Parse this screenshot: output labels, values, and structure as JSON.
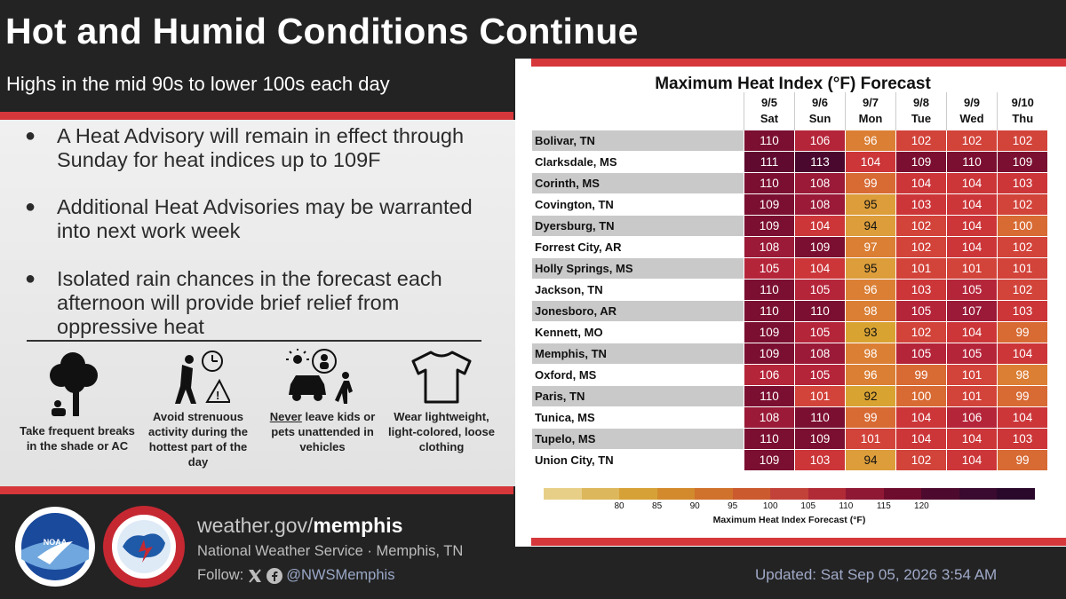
{
  "header": {
    "title": "Hot and Humid Conditions Continue",
    "subtitle": "Highs in the mid 90s to lower 100s each day"
  },
  "bullets": [
    "A Heat Advisory will remain in effect through Sunday for heat indices up to 109F",
    "Additional Heat Advisories may be warranted into next work week",
    "Isolated rain chances in the forecast each afternoon will provide brief relief from oppressive heat"
  ],
  "tips": {
    "shade": "Take frequent breaks in the shade or AC",
    "activity": "Avoid strenuous activity during the hottest part of the day",
    "kids_never": "Never",
    "kids_rest": "leave kids or pets unattended in vehicles",
    "clothing": "Wear lightweight, light-colored, loose clothing"
  },
  "table": {
    "title": "Maximum Heat Index (°F) Forecast",
    "days": [
      {
        "date": "9/5",
        "day": "Sat"
      },
      {
        "date": "9/6",
        "day": "Sun"
      },
      {
        "date": "9/7",
        "day": "Mon"
      },
      {
        "date": "9/8",
        "day": "Tue"
      },
      {
        "date": "9/9",
        "day": "Wed"
      },
      {
        "date": "9/10",
        "day": "Thu"
      }
    ],
    "rows": [
      {
        "city": "Bolivar, TN",
        "values": [
          110,
          106,
          96,
          102,
          102,
          102
        ]
      },
      {
        "city": "Clarksdale, MS",
        "values": [
          111,
          113,
          104,
          109,
          110,
          109
        ]
      },
      {
        "city": "Corinth, MS",
        "values": [
          110,
          108,
          99,
          104,
          104,
          103
        ]
      },
      {
        "city": "Covington, TN",
        "values": [
          109,
          108,
          95,
          103,
          104,
          102
        ]
      },
      {
        "city": "Dyersburg, TN",
        "values": [
          109,
          104,
          94,
          102,
          104,
          100
        ]
      },
      {
        "city": "Forrest City, AR",
        "values": [
          108,
          109,
          97,
          102,
          104,
          102
        ]
      },
      {
        "city": "Holly Springs, MS",
        "values": [
          105,
          104,
          95,
          101,
          101,
          101
        ]
      },
      {
        "city": "Jackson, TN",
        "values": [
          110,
          105,
          96,
          103,
          105,
          102
        ]
      },
      {
        "city": "Jonesboro, AR",
        "values": [
          110,
          110,
          98,
          105,
          107,
          103
        ]
      },
      {
        "city": "Kennett, MO",
        "values": [
          109,
          105,
          93,
          102,
          104,
          99
        ]
      },
      {
        "city": "Memphis, TN",
        "values": [
          109,
          108,
          98,
          105,
          105,
          104
        ]
      },
      {
        "city": "Oxford, MS",
        "values": [
          106,
          105,
          96,
          99,
          101,
          98
        ]
      },
      {
        "city": "Paris, TN",
        "values": [
          110,
          101,
          92,
          100,
          101,
          99
        ]
      },
      {
        "city": "Tunica, MS",
        "values": [
          108,
          110,
          99,
          104,
          106,
          104
        ]
      },
      {
        "city": "Tupelo, MS",
        "values": [
          110,
          109,
          101,
          104,
          104,
          103
        ]
      },
      {
        "city": "Union City, TN",
        "values": [
          109,
          103,
          94,
          102,
          104,
          99
        ]
      }
    ]
  },
  "legend": {
    "ticks": [
      "80",
      "85",
      "90",
      "95",
      "100",
      "105",
      "110",
      "115",
      "120"
    ],
    "label": "Maximum Heat Index Forecast (°F)",
    "colors": [
      "#e8cf88",
      "#ddb75c",
      "#d6a137",
      "#d28a2c",
      "#d0712c",
      "#cb5a2e",
      "#c2423a",
      "#b02b36",
      "#8f1834",
      "#6e0c2e",
      "#4e0a2e",
      "#3a0a30",
      "#2a082c"
    ]
  },
  "footer": {
    "website_prefix": "weather.gov/",
    "website_bold": "memphis",
    "office": "National Weather Service · Memphis, TN",
    "follow_label": "Follow:",
    "handle": "@NWSMemphis",
    "updated": "Updated: Sat Sep 05, 2026 3:54 AM"
  },
  "colors": {
    "accent_red": "#d6373b",
    "background": "#232323"
  }
}
